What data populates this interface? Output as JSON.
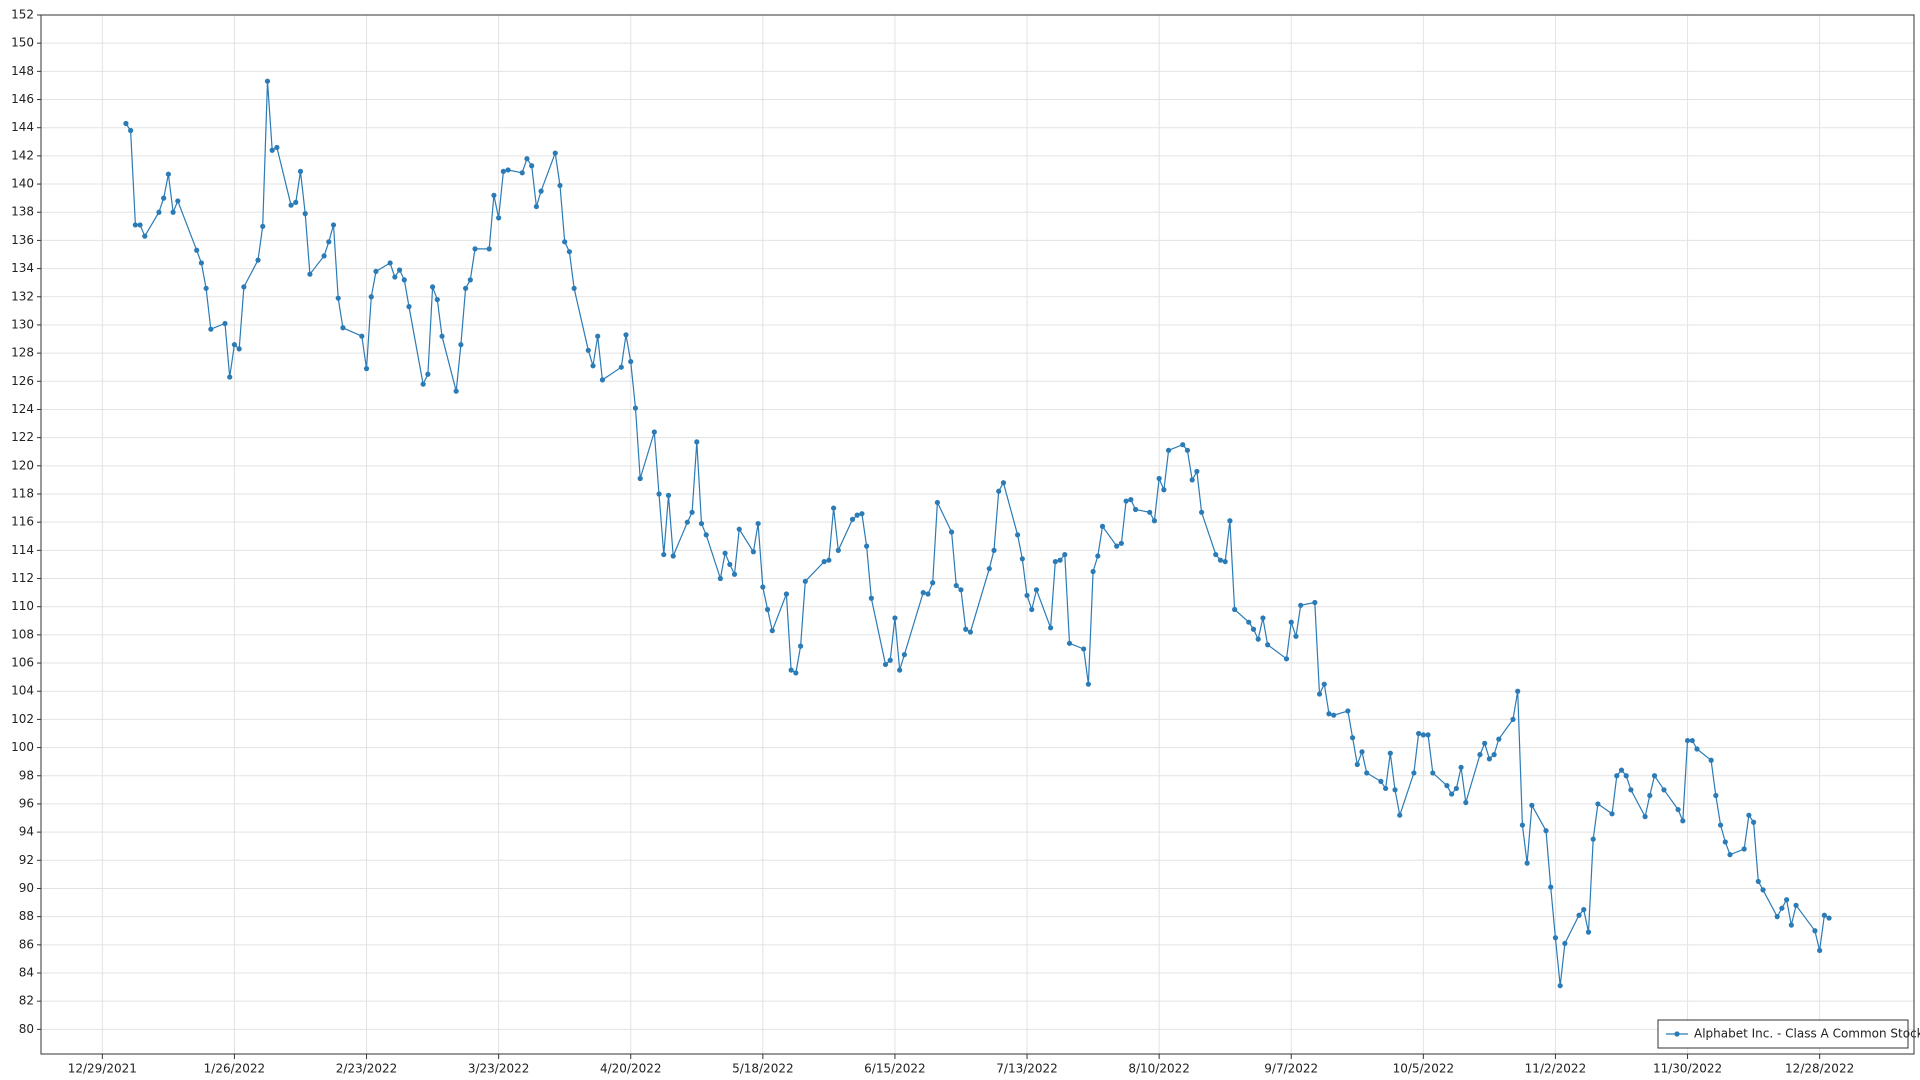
{
  "chart_data": {
    "type": "line",
    "x": [
      "1/3/2022",
      "1/4/2022",
      "1/5/2022",
      "1/6/2022",
      "1/7/2022",
      "1/10/2022",
      "1/11/2022",
      "1/12/2022",
      "1/13/2022",
      "1/14/2022",
      "1/18/2022",
      "1/19/2022",
      "1/20/2022",
      "1/21/2022",
      "1/24/2022",
      "1/25/2022",
      "1/26/2022",
      "1/27/2022",
      "1/28/2022",
      "1/31/2022",
      "2/1/2022",
      "2/2/2022",
      "2/3/2022",
      "2/4/2022",
      "2/7/2022",
      "2/8/2022",
      "2/9/2022",
      "2/10/2022",
      "2/11/2022",
      "2/14/2022",
      "2/15/2022",
      "2/16/2022",
      "2/17/2022",
      "2/18/2022",
      "2/22/2022",
      "2/23/2022",
      "2/24/2022",
      "2/25/2022",
      "2/28/2022",
      "3/1/2022",
      "3/2/2022",
      "3/3/2022",
      "3/4/2022",
      "3/7/2022",
      "3/8/2022",
      "3/9/2022",
      "3/10/2022",
      "3/11/2022",
      "3/14/2022",
      "3/15/2022",
      "3/16/2022",
      "3/17/2022",
      "3/18/2022",
      "3/21/2022",
      "3/22/2022",
      "3/23/2022",
      "3/24/2022",
      "3/25/2022",
      "3/28/2022",
      "3/29/2022",
      "3/30/2022",
      "3/31/2022",
      "4/1/2022",
      "4/4/2022",
      "4/5/2022",
      "4/6/2022",
      "4/7/2022",
      "4/8/2022",
      "4/11/2022",
      "4/12/2022",
      "4/13/2022",
      "4/14/2022",
      "4/18/2022",
      "4/19/2022",
      "4/20/2022",
      "4/21/2022",
      "4/22/2022",
      "4/25/2022",
      "4/26/2022",
      "4/27/2022",
      "4/28/2022",
      "4/29/2022",
      "5/2/2022",
      "5/3/2022",
      "5/4/2022",
      "5/5/2022",
      "5/6/2022",
      "5/9/2022",
      "5/10/2022",
      "5/11/2022",
      "5/12/2022",
      "5/13/2022",
      "5/16/2022",
      "5/17/2022",
      "5/18/2022",
      "5/19/2022",
      "5/20/2022",
      "5/23/2022",
      "5/24/2022",
      "5/25/2022",
      "5/26/2022",
      "5/27/2022",
      "5/31/2022",
      "6/1/2022",
      "6/2/2022",
      "6/3/2022",
      "6/6/2022",
      "6/7/2022",
      "6/8/2022",
      "6/9/2022",
      "6/10/2022",
      "6/13/2022",
      "6/14/2022",
      "6/15/2022",
      "6/16/2022",
      "6/17/2022",
      "6/21/2022",
      "6/22/2022",
      "6/23/2022",
      "6/24/2022",
      "6/27/2022",
      "6/28/2022",
      "6/29/2022",
      "6/30/2022",
      "7/1/2022",
      "7/5/2022",
      "7/6/2022",
      "7/7/2022",
      "7/8/2022",
      "7/11/2022",
      "7/12/2022",
      "7/13/2022",
      "7/14/2022",
      "7/15/2022",
      "7/18/2022",
      "7/19/2022",
      "7/20/2022",
      "7/21/2022",
      "7/22/2022",
      "7/25/2022",
      "7/26/2022",
      "7/27/2022",
      "7/28/2022",
      "7/29/2022",
      "8/1/2022",
      "8/2/2022",
      "8/3/2022",
      "8/4/2022",
      "8/5/2022",
      "8/8/2022",
      "8/9/2022",
      "8/10/2022",
      "8/11/2022",
      "8/12/2022",
      "8/15/2022",
      "8/16/2022",
      "8/17/2022",
      "8/18/2022",
      "8/19/2022",
      "8/22/2022",
      "8/23/2022",
      "8/24/2022",
      "8/25/2022",
      "8/26/2022",
      "8/29/2022",
      "8/30/2022",
      "8/31/2022",
      "9/1/2022",
      "9/2/2022",
      "9/6/2022",
      "9/7/2022",
      "9/8/2022",
      "9/9/2022",
      "9/12/2022",
      "9/13/2022",
      "9/14/2022",
      "9/15/2022",
      "9/16/2022",
      "9/19/2022",
      "9/20/2022",
      "9/21/2022",
      "9/22/2022",
      "9/23/2022",
      "9/26/2022",
      "9/27/2022",
      "9/28/2022",
      "9/29/2022",
      "9/30/2022",
      "10/3/2022",
      "10/4/2022",
      "10/5/2022",
      "10/6/2022",
      "10/7/2022",
      "10/10/2022",
      "10/11/2022",
      "10/12/2022",
      "10/13/2022",
      "10/14/2022",
      "10/17/2022",
      "10/18/2022",
      "10/19/2022",
      "10/20/2022",
      "10/21/2022",
      "10/24/2022",
      "10/25/2022",
      "10/26/2022",
      "10/27/2022",
      "10/28/2022",
      "10/31/2022",
      "11/1/2022",
      "11/2/2022",
      "11/3/2022",
      "11/4/2022",
      "11/7/2022",
      "11/8/2022",
      "11/9/2022",
      "11/10/2022",
      "11/11/2022",
      "11/14/2022",
      "11/15/2022",
      "11/16/2022",
      "11/17/2022",
      "11/18/2022",
      "11/21/2022",
      "11/22/2022",
      "11/23/2022",
      "11/25/2022",
      "11/28/2022",
      "11/29/2022",
      "11/30/2022",
      "12/1/2022",
      "12/2/2022",
      "12/5/2022",
      "12/6/2022",
      "12/7/2022",
      "12/8/2022",
      "12/9/2022",
      "12/12/2022",
      "12/13/2022",
      "12/14/2022",
      "12/15/2022",
      "12/16/2022",
      "12/19/2022",
      "12/20/2022",
      "12/21/2022",
      "12/22/2022",
      "12/23/2022",
      "12/27/2022",
      "12/28/2022",
      "12/29/2022",
      "12/30/2022"
    ],
    "series": [
      {
        "name": "Alphabet Inc. - Class A Common Stock",
        "color": "#2b7bb6",
        "values": [
          144.3,
          143.8,
          137.1,
          137.1,
          136.3,
          138.0,
          139.0,
          140.7,
          138.0,
          138.8,
          135.3,
          134.4,
          132.6,
          129.7,
          130.1,
          126.3,
          128.6,
          128.3,
          132.7,
          134.6,
          137.0,
          147.3,
          142.4,
          142.6,
          138.5,
          138.7,
          140.9,
          137.9,
          133.6,
          134.9,
          135.9,
          137.1,
          131.9,
          129.8,
          129.2,
          126.9,
          132.0,
          133.8,
          134.4,
          133.4,
          133.9,
          133.2,
          131.3,
          125.8,
          126.5,
          132.7,
          131.8,
          129.2,
          125.3,
          128.6,
          132.6,
          133.2,
          135.4,
          135.4,
          139.2,
          137.6,
          140.9,
          141.0,
          140.8,
          141.8,
          141.3,
          138.4,
          139.5,
          142.2,
          139.9,
          135.9,
          135.2,
          132.6,
          128.2,
          127.1,
          129.2,
          126.1,
          127.0,
          129.3,
          127.4,
          124.1,
          119.1,
          122.4,
          118.0,
          113.7,
          117.9,
          113.6,
          116.0,
          116.7,
          121.7,
          115.9,
          115.1,
          112.0,
          113.8,
          113.0,
          112.3,
          115.5,
          113.9,
          115.9,
          111.4,
          109.8,
          108.3,
          110.9,
          105.5,
          105.3,
          107.2,
          111.8,
          113.2,
          113.3,
          117.0,
          114.0,
          116.2,
          116.5,
          116.6,
          114.3,
          110.6,
          105.9,
          106.2,
          109.2,
          105.5,
          106.6,
          111.0,
          110.9,
          111.7,
          117.4,
          115.3,
          111.5,
          111.2,
          108.4,
          108.2,
          112.7,
          114.0,
          118.2,
          118.8,
          115.1,
          113.4,
          110.8,
          109.8,
          111.2,
          108.5,
          113.2,
          113.3,
          113.7,
          107.4,
          107.0,
          104.5,
          112.5,
          113.6,
          115.7,
          114.3,
          114.5,
          117.5,
          117.6,
          116.9,
          116.7,
          116.1,
          119.1,
          118.3,
          121.1,
          121.5,
          121.1,
          119.0,
          119.6,
          116.7,
          113.7,
          113.3,
          113.2,
          116.1,
          109.8,
          108.9,
          108.4,
          107.7,
          109.2,
          107.3,
          106.3,
          108.9,
          107.9,
          110.1,
          110.3,
          103.8,
          104.5,
          102.4,
          102.3,
          102.6,
          100.7,
          98.8,
          99.7,
          98.2,
          97.6,
          97.1,
          99.6,
          97.0,
          95.2,
          98.2,
          101.0,
          100.9,
          100.9,
          98.2,
          97.3,
          96.7,
          97.1,
          98.6,
          96.1,
          99.5,
          100.3,
          99.2,
          99.5,
          100.6,
          102.0,
          104.0,
          94.5,
          91.8,
          95.9,
          94.1,
          90.1,
          86.5,
          83.1,
          86.1,
          88.1,
          88.5,
          86.9,
          93.5,
          96.0,
          95.3,
          98.0,
          98.4,
          98.0,
          97.0,
          95.1,
          96.6,
          98.0,
          97.0,
          95.6,
          94.8,
          100.5,
          100.5,
          99.9,
          99.1,
          96.6,
          94.5,
          93.3,
          92.4,
          92.8,
          95.2,
          94.7,
          90.5,
          89.9,
          88.0,
          88.6,
          89.2,
          87.4,
          88.8,
          87.0,
          85.6,
          88.1,
          87.9
        ]
      }
    ],
    "xlim": [
      "12/16/2021",
      "1/17/2023"
    ],
    "xticks": [
      "12/29/2021",
      "1/26/2022",
      "2/23/2022",
      "3/23/2022",
      "4/20/2022",
      "5/18/2022",
      "6/15/2022",
      "7/13/2022",
      "8/10/2022",
      "9/7/2022",
      "10/5/2022",
      "11/2/2022",
      "11/30/2022",
      "12/28/2022"
    ],
    "ylim": [
      78.25,
      152
    ],
    "yticks": [
      80,
      82,
      84,
      86,
      88,
      90,
      92,
      94,
      96,
      98,
      100,
      102,
      104,
      106,
      108,
      110,
      112,
      114,
      116,
      118,
      120,
      122,
      124,
      126,
      128,
      130,
      132,
      134,
      136,
      138,
      140,
      142,
      144,
      146,
      148,
      150,
      152
    ],
    "grid": true,
    "legend": "lower right",
    "marker": true
  }
}
